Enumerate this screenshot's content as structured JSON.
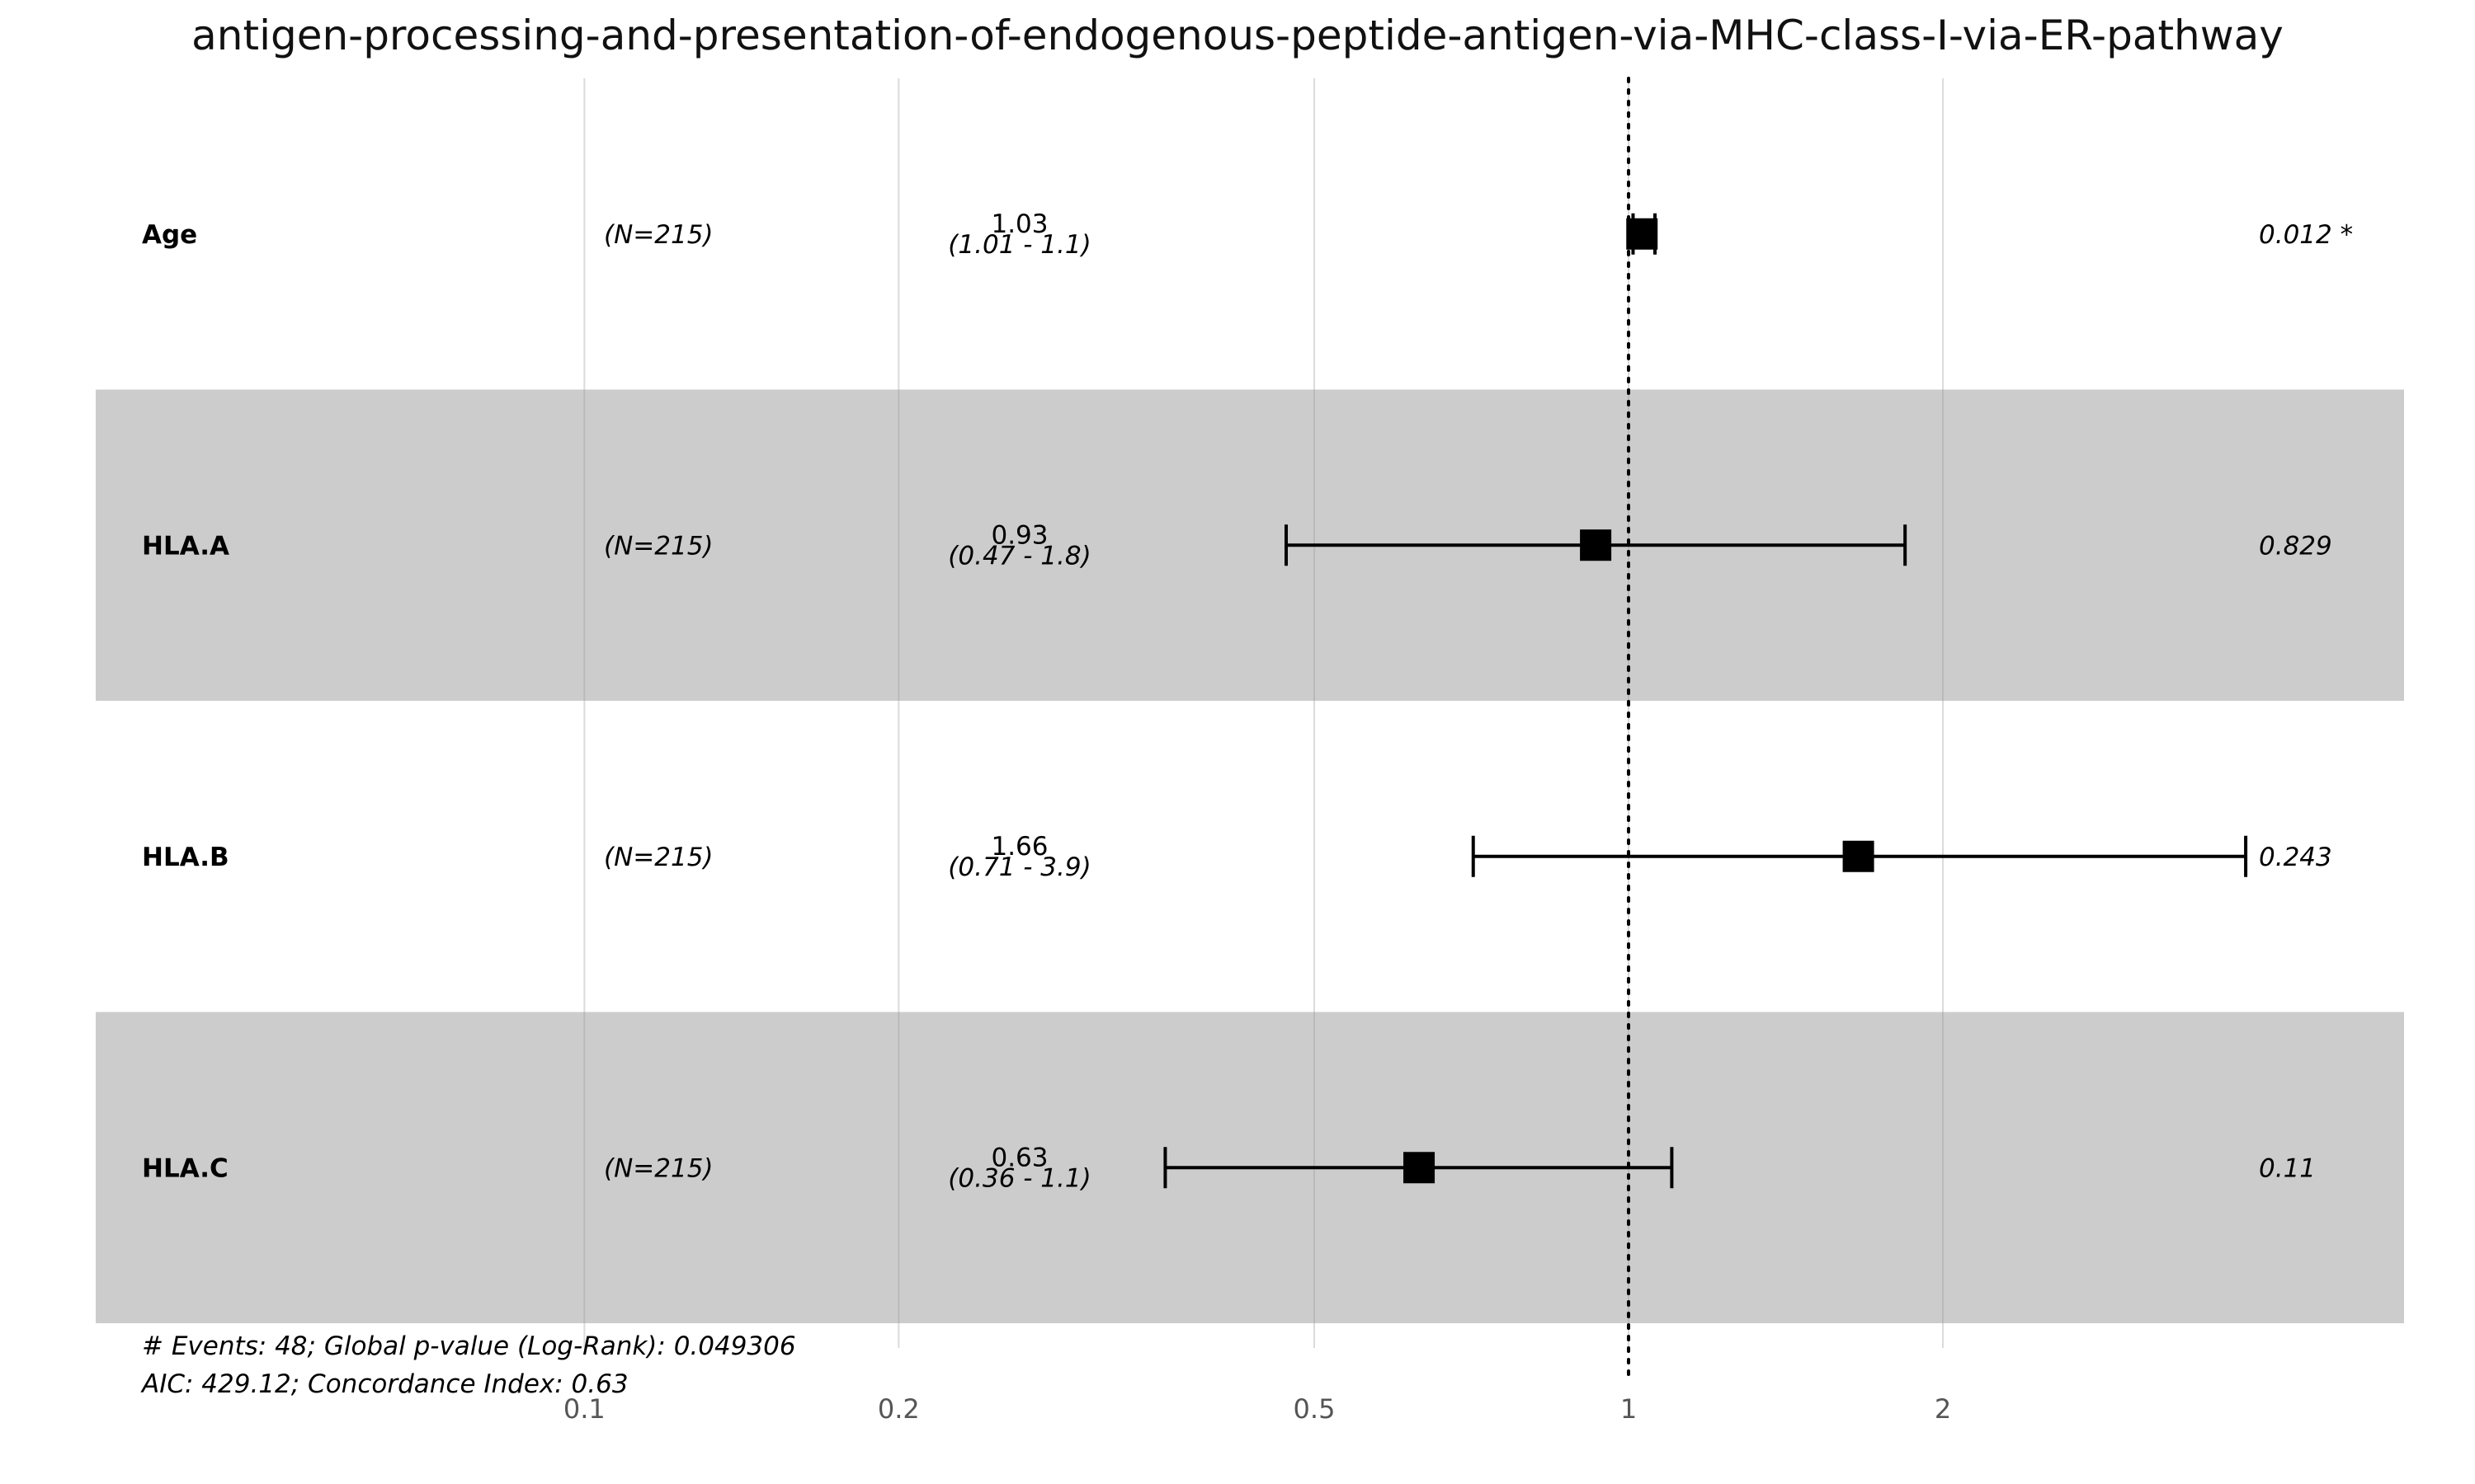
{
  "chart_data": {
    "type": "forest",
    "title": "antigen-processing-and-presentation-of-endogenous-peptide-antigen-via-MHC-class-I-via-ER-pathway",
    "x_scale": "log",
    "xlim": [
      0.0517,
      8.2
    ],
    "x_ticks": [
      0.1,
      0.2,
      0.5,
      1,
      2
    ],
    "x_tick_labels": [
      "0.1",
      "0.2",
      "0.5",
      "1",
      "2"
    ],
    "reference_line": 1,
    "rows": [
      {
        "variable": "Age",
        "n": "(N=215)",
        "hr": 1.03,
        "hr_label": "1.03",
        "ci_low": 1.01,
        "ci_high": 1.06,
        "ci_label": "(1.01 - 1.1)",
        "p_label": "0.012 *",
        "shaded": false
      },
      {
        "variable": "HLA.A",
        "n": "(N=215)",
        "hr": 0.93,
        "hr_label": "0.93",
        "ci_low": 0.47,
        "ci_high": 1.84,
        "ci_label": "(0.47 - 1.8)",
        "p_label": "0.829",
        "shaded": true
      },
      {
        "variable": "HLA.B",
        "n": "(N=215)",
        "hr": 1.66,
        "hr_label": "1.66",
        "ci_low": 0.71,
        "ci_high": 3.9,
        "ci_label": "(0.71 - 3.9)",
        "p_label": "0.243",
        "shaded": false
      },
      {
        "variable": "HLA.C",
        "n": "(N=215)",
        "hr": 0.63,
        "hr_label": "0.63",
        "ci_low": 0.36,
        "ci_high": 1.1,
        "ci_label": "(0.36 - 1.1)",
        "p_label": "0.11",
        "shaded": true
      }
    ],
    "footer": [
      "# Events: 48; Global p-value (Log-Rank): 0.049306",
      "AIC: 429.12; Concordance Index: 0.63"
    ],
    "colors": {
      "shade": "#cccccc",
      "gridline": "#dddddd",
      "ink": "#000000"
    }
  }
}
